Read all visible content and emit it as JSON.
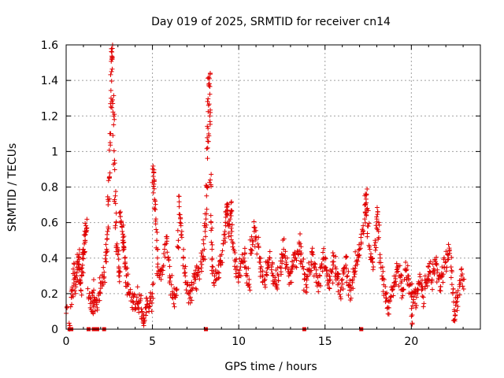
{
  "chart_data": {
    "type": "scatter",
    "title": "Day 019 of 2025, SRMTID for receiver cn14",
    "xlabel": "GPS time / hours",
    "ylabel": "SRMTID / TECUs",
    "xlim": [
      0,
      24
    ],
    "ylim": [
      0,
      1.6
    ],
    "xticks": [
      0,
      5,
      10,
      15,
      20
    ],
    "xtick_labels": [
      "0",
      "5",
      "10",
      "15",
      "20"
    ],
    "yticks": [
      0,
      0.2,
      0.4,
      0.6,
      0.8,
      1.0,
      1.2,
      1.4,
      1.6
    ],
    "ytick_labels": [
      "0",
      "0.2",
      "0.4",
      "0.6",
      "0.8",
      "1",
      "1.2",
      "1.4",
      "1.6"
    ],
    "grid": true,
    "marker": "+",
    "color": "#e00000",
    "series": [
      {
        "name": "SRMTID",
        "points": [
          [
            0.05,
            0.12
          ],
          [
            0.2,
            0.0
          ],
          [
            0.3,
            0.18
          ],
          [
            0.35,
            0.22
          ],
          [
            0.45,
            0.28
          ],
          [
            0.5,
            0.32
          ],
          [
            0.55,
            0.25
          ],
          [
            0.6,
            0.3
          ],
          [
            0.65,
            0.38
          ],
          [
            0.7,
            0.35
          ],
          [
            0.75,
            0.42
          ],
          [
            0.8,
            0.28
          ],
          [
            0.85,
            0.22
          ],
          [
            0.9,
            0.3
          ],
          [
            0.95,
            0.36
          ],
          [
            1.0,
            0.45
          ],
          [
            1.05,
            0.48
          ],
          [
            1.1,
            0.5
          ],
          [
            1.15,
            0.55
          ],
          [
            1.2,
            0.57
          ],
          [
            1.3,
            0.18
          ],
          [
            1.4,
            0.12
          ],
          [
            1.5,
            0.15
          ],
          [
            1.55,
            0.1
          ],
          [
            1.6,
            0.22
          ],
          [
            1.7,
            0.16
          ],
          [
            1.8,
            0.12
          ],
          [
            1.9,
            0.2
          ],
          [
            2.0,
            0.26
          ],
          [
            2.1,
            0.3
          ],
          [
            2.2,
            0.32
          ],
          [
            2.3,
            0.38
          ],
          [
            2.35,
            0.45
          ],
          [
            2.4,
            0.55
          ],
          [
            2.45,
            0.72
          ],
          [
            2.5,
            0.85
          ],
          [
            2.55,
            1.05
          ],
          [
            2.6,
            1.3
          ],
          [
            2.63,
            1.45
          ],
          [
            2.65,
            1.56
          ],
          [
            2.68,
            1.58
          ],
          [
            2.7,
            1.27
          ],
          [
            2.75,
            1.15
          ],
          [
            2.8,
            0.95
          ],
          [
            2.85,
            0.75
          ],
          [
            2.9,
            0.6
          ],
          [
            2.95,
            0.48
          ],
          [
            3.0,
            0.42
          ],
          [
            3.05,
            0.35
          ],
          [
            3.1,
            0.3
          ],
          [
            3.15,
            0.66
          ],
          [
            3.2,
            0.6
          ],
          [
            3.25,
            0.55
          ],
          [
            3.3,
            0.5
          ],
          [
            3.35,
            0.45
          ],
          [
            3.4,
            0.4
          ],
          [
            3.45,
            0.35
          ],
          [
            3.5,
            0.3
          ],
          [
            3.6,
            0.25
          ],
          [
            3.7,
            0.2
          ],
          [
            3.8,
            0.18
          ],
          [
            3.9,
            0.15
          ],
          [
            4.0,
            0.14
          ],
          [
            4.1,
            0.18
          ],
          [
            4.2,
            0.12
          ],
          [
            4.3,
            0.16
          ],
          [
            4.4,
            0.1
          ],
          [
            4.5,
            0.08
          ],
          [
            4.55,
            0.05
          ],
          [
            4.6,
            0.12
          ],
          [
            4.7,
            0.14
          ],
          [
            4.8,
            0.1
          ],
          [
            4.9,
            0.16
          ],
          [
            5.0,
            0.2
          ],
          [
            5.05,
            0.86
          ],
          [
            5.08,
            0.88
          ],
          [
            5.1,
            0.79
          ],
          [
            5.15,
            0.72
          ],
          [
            5.2,
            0.62
          ],
          [
            5.25,
            0.5
          ],
          [
            5.3,
            0.35
          ],
          [
            5.4,
            0.3
          ],
          [
            5.5,
            0.28
          ],
          [
            5.6,
            0.35
          ],
          [
            5.7,
            0.45
          ],
          [
            5.8,
            0.52
          ],
          [
            5.9,
            0.4
          ],
          [
            6.0,
            0.3
          ],
          [
            6.1,
            0.25
          ],
          [
            6.2,
            0.2
          ],
          [
            6.3,
            0.18
          ],
          [
            6.4,
            0.22
          ],
          [
            6.5,
            0.5
          ],
          [
            6.55,
            0.69
          ],
          [
            6.6,
            0.6
          ],
          [
            6.7,
            0.55
          ],
          [
            6.8,
            0.4
          ],
          [
            6.9,
            0.3
          ],
          [
            7.0,
            0.25
          ],
          [
            7.1,
            0.2
          ],
          [
            7.2,
            0.18
          ],
          [
            7.3,
            0.22
          ],
          [
            7.4,
            0.26
          ],
          [
            7.5,
            0.28
          ],
          [
            7.6,
            0.3
          ],
          [
            7.7,
            0.34
          ],
          [
            7.8,
            0.38
          ],
          [
            7.9,
            0.4
          ],
          [
            8.0,
            0.45
          ],
          [
            8.05,
            0.55
          ],
          [
            8.1,
            0.62
          ],
          [
            8.15,
            0.8
          ],
          [
            8.2,
            1.02
          ],
          [
            8.22,
            1.13
          ],
          [
            8.25,
            1.26
          ],
          [
            8.27,
            1.37
          ],
          [
            8.3,
            1.41
          ],
          [
            8.32,
            1.2
          ],
          [
            8.35,
            0.84
          ],
          [
            8.4,
            0.6
          ],
          [
            8.45,
            0.45
          ],
          [
            8.5,
            0.35
          ],
          [
            8.6,
            0.3
          ],
          [
            8.7,
            0.28
          ],
          [
            8.8,
            0.32
          ],
          [
            8.9,
            0.38
          ],
          [
            9.0,
            0.42
          ],
          [
            9.1,
            0.48
          ],
          [
            9.2,
            0.55
          ],
          [
            9.25,
            0.63
          ],
          [
            9.3,
            0.7
          ],
          [
            9.35,
            0.65
          ],
          [
            9.4,
            0.58
          ],
          [
            9.5,
            0.62
          ],
          [
            9.55,
            0.66
          ],
          [
            9.6,
            0.55
          ],
          [
            9.7,
            0.45
          ],
          [
            9.8,
            0.38
          ],
          [
            9.9,
            0.35
          ],
          [
            10.0,
            0.3
          ],
          [
            10.1,
            0.35
          ],
          [
            10.2,
            0.42
          ],
          [
            10.3,
            0.4
          ],
          [
            10.4,
            0.35
          ],
          [
            10.5,
            0.3
          ],
          [
            10.6,
            0.28
          ],
          [
            10.7,
            0.45
          ],
          [
            10.8,
            0.5
          ],
          [
            10.9,
            0.55
          ],
          [
            11.0,
            0.52
          ],
          [
            11.1,
            0.48
          ],
          [
            11.2,
            0.4
          ],
          [
            11.3,
            0.35
          ],
          [
            11.4,
            0.3
          ],
          [
            11.5,
            0.28
          ],
          [
            11.6,
            0.32
          ],
          [
            11.7,
            0.36
          ],
          [
            11.8,
            0.4
          ],
          [
            11.9,
            0.35
          ],
          [
            12.0,
            0.3
          ],
          [
            12.1,
            0.28
          ],
          [
            12.2,
            0.25
          ],
          [
            12.3,
            0.3
          ],
          [
            12.4,
            0.35
          ],
          [
            12.5,
            0.42
          ],
          [
            12.6,
            0.45
          ],
          [
            12.7,
            0.4
          ],
          [
            12.8,
            0.35
          ],
          [
            12.9,
            0.3
          ],
          [
            13.0,
            0.32
          ],
          [
            13.1,
            0.38
          ],
          [
            13.2,
            0.42
          ],
          [
            13.3,
            0.4
          ],
          [
            13.4,
            0.44
          ],
          [
            13.5,
            0.48
          ],
          [
            13.6,
            0.42
          ],
          [
            13.7,
            0.35
          ],
          [
            13.8,
            0.28
          ],
          [
            13.9,
            0.25
          ],
          [
            14.0,
            0.3
          ],
          [
            14.1,
            0.34
          ],
          [
            14.2,
            0.38
          ],
          [
            14.3,
            0.42
          ],
          [
            14.4,
            0.35
          ],
          [
            14.5,
            0.3
          ],
          [
            14.6,
            0.26
          ],
          [
            14.7,
            0.3
          ],
          [
            14.8,
            0.36
          ],
          [
            14.9,
            0.4
          ],
          [
            15.0,
            0.35
          ],
          [
            15.1,
            0.3
          ],
          [
            15.2,
            0.26
          ],
          [
            15.3,
            0.28
          ],
          [
            15.4,
            0.32
          ],
          [
            15.5,
            0.38
          ],
          [
            15.6,
            0.35
          ],
          [
            15.7,
            0.3
          ],
          [
            15.8,
            0.26
          ],
          [
            15.9,
            0.22
          ],
          [
            16.0,
            0.28
          ],
          [
            16.1,
            0.32
          ],
          [
            16.2,
            0.36
          ],
          [
            16.3,
            0.3
          ],
          [
            16.4,
            0.25
          ],
          [
            16.5,
            0.22
          ],
          [
            16.6,
            0.28
          ],
          [
            16.7,
            0.32
          ],
          [
            16.8,
            0.38
          ],
          [
            16.9,
            0.42
          ],
          [
            17.0,
            0.45
          ],
          [
            17.1,
            0.48
          ],
          [
            17.2,
            0.55
          ],
          [
            17.3,
            0.62
          ],
          [
            17.35,
            0.7
          ],
          [
            17.4,
            0.76
          ],
          [
            17.45,
            0.68
          ],
          [
            17.5,
            0.58
          ],
          [
            17.6,
            0.45
          ],
          [
            17.7,
            0.4
          ],
          [
            17.8,
            0.35
          ],
          [
            17.9,
            0.5
          ],
          [
            18.0,
            0.62
          ],
          [
            18.05,
            0.66
          ],
          [
            18.1,
            0.55
          ],
          [
            18.2,
            0.4
          ],
          [
            18.3,
            0.3
          ],
          [
            18.4,
            0.25
          ],
          [
            18.5,
            0.2
          ],
          [
            18.6,
            0.16
          ],
          [
            18.7,
            0.12
          ],
          [
            18.8,
            0.18
          ],
          [
            18.9,
            0.22
          ],
          [
            19.0,
            0.26
          ],
          [
            19.1,
            0.3
          ],
          [
            19.2,
            0.34
          ],
          [
            19.3,
            0.3
          ],
          [
            19.4,
            0.26
          ],
          [
            19.5,
            0.22
          ],
          [
            19.6,
            0.28
          ],
          [
            19.7,
            0.33
          ],
          [
            19.8,
            0.3
          ],
          [
            19.9,
            0.25
          ],
          [
            20.0,
            0.2
          ],
          [
            20.05,
            0.08
          ],
          [
            20.1,
            0.15
          ],
          [
            20.2,
            0.2
          ],
          [
            20.3,
            0.18
          ],
          [
            20.4,
            0.22
          ],
          [
            20.5,
            0.26
          ],
          [
            20.6,
            0.22
          ],
          [
            20.7,
            0.18
          ],
          [
            20.8,
            0.24
          ],
          [
            20.9,
            0.28
          ],
          [
            21.0,
            0.3
          ],
          [
            21.1,
            0.32
          ],
          [
            21.2,
            0.28
          ],
          [
            21.3,
            0.34
          ],
          [
            21.4,
            0.38
          ],
          [
            21.5,
            0.32
          ],
          [
            21.6,
            0.28
          ],
          [
            21.7,
            0.24
          ],
          [
            21.8,
            0.3
          ],
          [
            21.9,
            0.35
          ],
          [
            22.0,
            0.38
          ],
          [
            22.1,
            0.42
          ],
          [
            22.2,
            0.44
          ],
          [
            22.3,
            0.35
          ],
          [
            22.4,
            0.2
          ],
          [
            22.5,
            0.1
          ],
          [
            22.55,
            0.08
          ],
          [
            22.6,
            0.15
          ],
          [
            22.7,
            0.18
          ],
          [
            22.8,
            0.24
          ],
          [
            22.9,
            0.3
          ],
          [
            23.0,
            0.28
          ]
        ]
      }
    ],
    "zero_markers_x": [
      0.2,
      0.3,
      1.3,
      1.6,
      1.8,
      2.2,
      8.1,
      13.8,
      17.1
    ]
  }
}
